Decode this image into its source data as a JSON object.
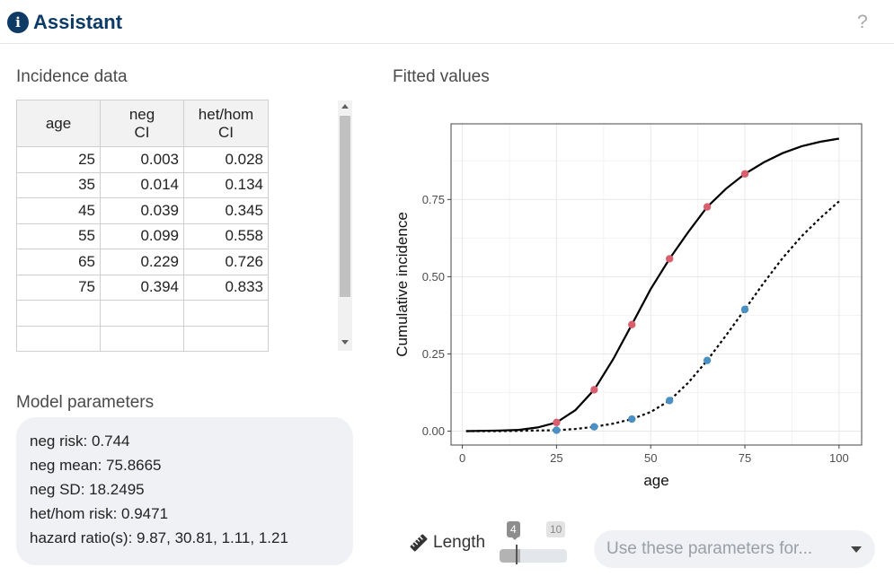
{
  "header": {
    "title": "Assistant",
    "info_icon": "i",
    "help": "?"
  },
  "incidence": {
    "title": "Incidence data",
    "columns": [
      {
        "line1": "age",
        "line2": ""
      },
      {
        "line1": "neg",
        "line2": "CI"
      },
      {
        "line1": "het/hom",
        "line2": "CI"
      }
    ],
    "rows": [
      [
        "25",
        "0.003",
        "0.028"
      ],
      [
        "35",
        "0.014",
        "0.134"
      ],
      [
        "45",
        "0.039",
        "0.345"
      ],
      [
        "55",
        "0.099",
        "0.558"
      ],
      [
        "65",
        "0.229",
        "0.726"
      ],
      [
        "75",
        "0.394",
        "0.833"
      ],
      [
        "",
        "",
        ""
      ],
      [
        "",
        "",
        ""
      ]
    ]
  },
  "model": {
    "title": "Model parameters",
    "lines": [
      "neg risk: 0.744",
      "neg mean: 75.8665",
      "neg SD: 18.2495",
      "het/hom risk: 0.9471",
      "hazard ratio(s): 9.87, 30.81, 1.11, 1.21"
    ]
  },
  "fitted": {
    "title": "Fitted values"
  },
  "chart_data": {
    "type": "line",
    "xlabel": "age",
    "ylabel": "Cumulative incidence",
    "xlim": [
      -3,
      106
    ],
    "ylim": [
      -0.045,
      0.995
    ],
    "xticks": [
      0,
      25,
      50,
      75,
      100
    ],
    "xtick_labels": [
      "0",
      "25",
      "50",
      "75",
      "100"
    ],
    "yticks": [
      0,
      0.25,
      0.5,
      0.75
    ],
    "ytick_labels": [
      "0.00",
      "0.25",
      "0.50",
      "0.75"
    ],
    "grid": true,
    "series": [
      {
        "style": "solid",
        "color": "#000000",
        "x": [
          1,
          5,
          10,
          15,
          20,
          25,
          30,
          35,
          40,
          45,
          50,
          55,
          60,
          65,
          70,
          75,
          80,
          85,
          90,
          95,
          100
        ],
        "y": [
          0.0,
          0.001,
          0.002,
          0.004,
          0.012,
          0.028,
          0.068,
          0.134,
          0.232,
          0.345,
          0.46,
          0.558,
          0.645,
          0.726,
          0.785,
          0.833,
          0.87,
          0.9,
          0.922,
          0.937,
          0.947
        ]
      },
      {
        "style": "dotted",
        "color": "#000000",
        "x": [
          1,
          5,
          10,
          15,
          20,
          25,
          30,
          35,
          40,
          45,
          50,
          55,
          60,
          65,
          70,
          75,
          80,
          85,
          90,
          95,
          100
        ],
        "y": [
          0.0,
          0.0,
          0.0,
          0.001,
          0.002,
          0.003,
          0.007,
          0.014,
          0.024,
          0.039,
          0.062,
          0.099,
          0.157,
          0.229,
          0.31,
          0.394,
          0.48,
          0.56,
          0.63,
          0.69,
          0.744
        ]
      }
    ],
    "points": [
      {
        "color": "#d95f6e",
        "x": [
          25,
          35,
          45,
          55,
          65,
          75
        ],
        "y": [
          0.028,
          0.134,
          0.345,
          0.558,
          0.726,
          0.833
        ]
      },
      {
        "color": "#4a90c2",
        "x": [
          25,
          35,
          45,
          55,
          65,
          75
        ],
        "y": [
          0.003,
          0.014,
          0.039,
          0.099,
          0.229,
          0.394
        ]
      }
    ]
  },
  "controls": {
    "length_label": "Length",
    "length_icon": "ruler-icon",
    "slider": {
      "value": "4",
      "max": "10",
      "fraction": 0.3
    },
    "select_placeholder": "Use these parameters for..."
  }
}
